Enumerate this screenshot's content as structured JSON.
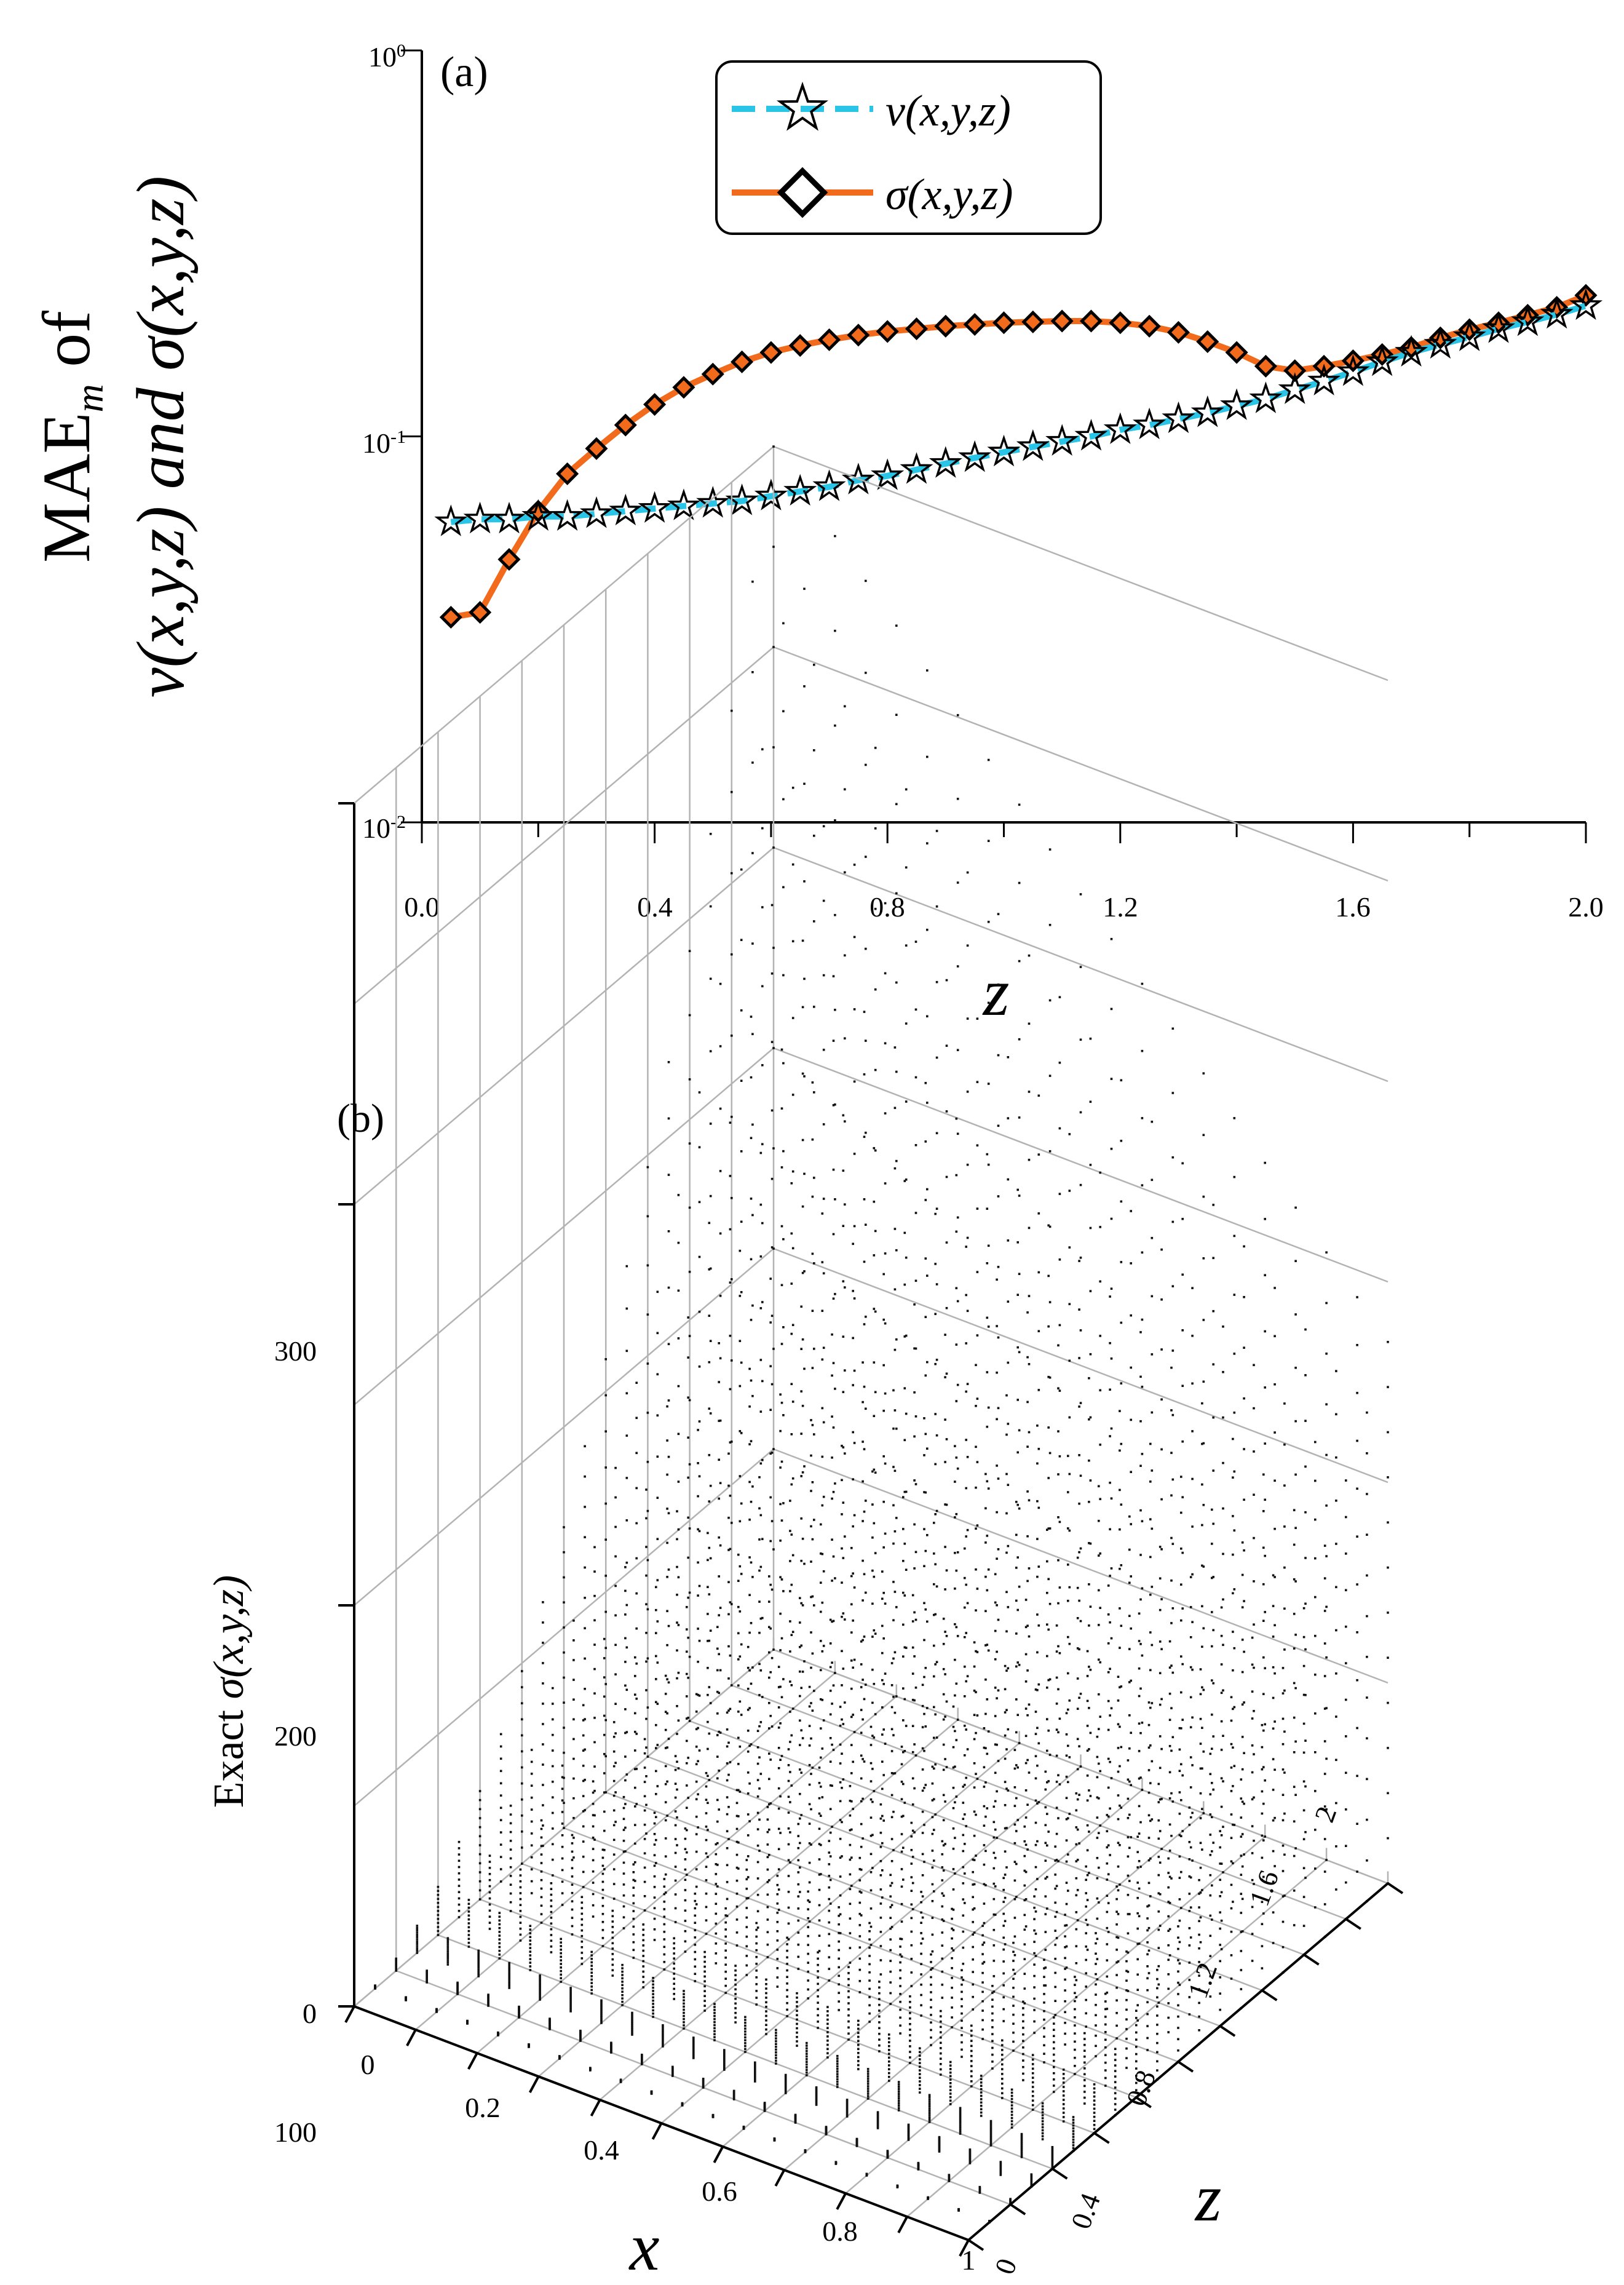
{
  "panel_a": {
    "panel_label": "(a)",
    "ylabel_line1_prefix": "MAE",
    "ylabel_line1_sub": "m",
    "ylabel_line1_suffix": " of",
    "ylabel_line2": "v(x,y,z) and σ(x,y,z)",
    "xlabel": "z",
    "ytick_labels": [
      {
        "base": "10",
        "exp": "0"
      },
      {
        "base": "10",
        "exp": "-1"
      },
      {
        "base": "10",
        "exp": "-2"
      }
    ],
    "xtick_labels": [
      "0.0",
      "0.4",
      "0.8",
      "1.2",
      "1.6",
      "2.0"
    ],
    "legend": [
      "v(x,y,z)",
      "σ(x,y,z)"
    ]
  },
  "panel_b": {
    "panel_label": "(b)",
    "zlabel": "Exact σ(x,y,z)",
    "zlabel_prefix": "Exact ",
    "zlabel_func": "σ(x,y,z)",
    "xlabel": "x",
    "ylabel": "z",
    "vtick_labels": [
      "300",
      "200",
      "100",
      "0"
    ],
    "xtick_labels": [
      "0",
      "0.2",
      "0.4",
      "0.6",
      "0.8",
      "1"
    ],
    "ztick_labels": [
      "0",
      "0.4",
      "0.8",
      "1.2",
      "1.6",
      "2"
    ]
  },
  "colors": {
    "v_series": "#29c4e6",
    "sigma_series": "#f26a1b",
    "marker_stroke": "#000000",
    "grid": "#b3b3b3"
  },
  "chart_data": [
    {
      "type": "line",
      "title": "(a)",
      "xlabel": "z",
      "ylabel": "MAE_m of v(x,y,z) and σ(x,y,z)",
      "yscale": "log",
      "xlim": [
        0.0,
        2.0
      ],
      "ylim": [
        0.01,
        1.0
      ],
      "legend_position": "top-center",
      "x": [
        0.05,
        0.1,
        0.15,
        0.2,
        0.25,
        0.3,
        0.35,
        0.4,
        0.45,
        0.5,
        0.55,
        0.6,
        0.65,
        0.7,
        0.75,
        0.8,
        0.85,
        0.9,
        0.95,
        1.0,
        1.05,
        1.1,
        1.15,
        1.2,
        1.25,
        1.3,
        1.35,
        1.4,
        1.45,
        1.5,
        1.55,
        1.6,
        1.65,
        1.7,
        1.75,
        1.8,
        1.85,
        1.9,
        1.95,
        2.0
      ],
      "series": [
        {
          "name": "v(x,y,z)",
          "style": "dashed",
          "marker": "star",
          "values": [
            0.06,
            0.061,
            0.061,
            0.062,
            0.062,
            0.063,
            0.064,
            0.065,
            0.066,
            0.067,
            0.068,
            0.07,
            0.072,
            0.074,
            0.077,
            0.079,
            0.082,
            0.085,
            0.088,
            0.091,
            0.094,
            0.097,
            0.1,
            0.104,
            0.107,
            0.111,
            0.115,
            0.12,
            0.125,
            0.132,
            0.139,
            0.147,
            0.156,
            0.165,
            0.173,
            0.181,
            0.19,
            0.198,
            0.207,
            0.218
          ]
        },
        {
          "name": "σ(x,y,z)",
          "style": "solid",
          "marker": "diamond",
          "values": [
            0.034,
            0.035,
            0.048,
            0.064,
            0.08,
            0.093,
            0.107,
            0.121,
            0.134,
            0.145,
            0.156,
            0.165,
            0.172,
            0.178,
            0.183,
            0.187,
            0.19,
            0.193,
            0.195,
            0.197,
            0.198,
            0.199,
            0.199,
            0.197,
            0.193,
            0.186,
            0.176,
            0.165,
            0.152,
            0.148,
            0.152,
            0.157,
            0.163,
            0.17,
            0.18,
            0.189,
            0.197,
            0.206,
            0.216,
            0.232
          ]
        }
      ]
    },
    {
      "type": "scatter",
      "title": "(b)",
      "xlabel": "x",
      "ylabel": "z",
      "zlabel": "Exact σ(x,y,z)",
      "xlim": [
        0,
        1
      ],
      "ylim": [
        0,
        2
      ],
      "zlim": [
        0,
        300
      ],
      "x_ticks": [
        0,
        0.2,
        0.4,
        0.6,
        0.8,
        1
      ],
      "y_ticks": [
        0,
        0.4,
        0.8,
        1.2,
        1.6,
        2
      ],
      "z_ticks": [
        0,
        100,
        200,
        300
      ],
      "description": "3D point cloud of exact σ over (x,y) grid at levels of z; values grow with z up to ~300 at z=2"
    }
  ]
}
